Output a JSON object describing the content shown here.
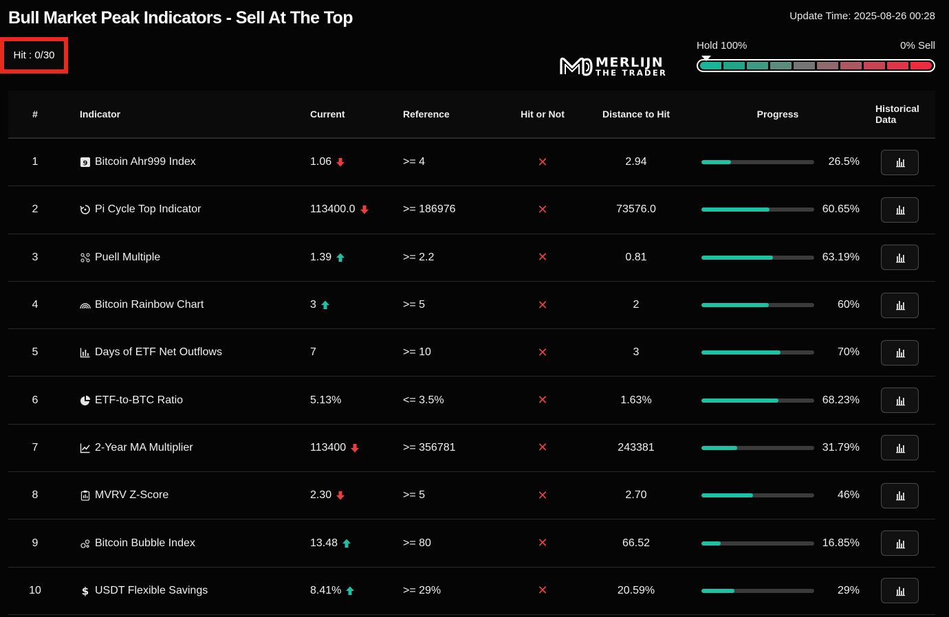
{
  "page_title": "Bull Market Peak Indicators - Sell At The Top",
  "update_time": "Update Time: 2025-08-26 00:28",
  "hit_badge": "Hit : 0/30",
  "logo": {
    "line1": "MERLIJN",
    "line2": "THE TRADER"
  },
  "meter": {
    "left_label": "Hold 100%",
    "right_label": "0% Sell",
    "pointer_value": 0,
    "segments": [
      "#1ab598",
      "#21a588",
      "#3e9a82",
      "#5c8c7d",
      "#757575",
      "#8e6a6e",
      "#ad5860",
      "#c74453",
      "#de3648",
      "#ef2b40"
    ]
  },
  "colors": {
    "accent": "#1fc1a4",
    "down": "#ee3b3b",
    "up": "#1fc1a4",
    "cross": "#e5453c",
    "highlight": "#ea2a1e"
  },
  "headers": {
    "num": "#",
    "indicator": "Indicator",
    "current": "Current",
    "reference": "Reference",
    "hit": "Hit or Not",
    "distance": "Distance to Hit",
    "progress": "Progress",
    "history": "Historical Data"
  },
  "rows": [
    {
      "num": "1",
      "icon": "ahr999-badge-icon",
      "name": "Bitcoin Ahr999 Index",
      "current": "1.06",
      "trend": "down",
      "reference": ">= 4",
      "hit": "✕",
      "distance": "2.94",
      "progress": 26.5,
      "progress_label": "26.5%"
    },
    {
      "num": "2",
      "icon": "pi-cycle-icon",
      "name": "Pi Cycle Top Indicator",
      "current": "113400.0",
      "trend": "down",
      "reference": ">= 186976",
      "hit": "✕",
      "distance": "73576.0",
      "progress": 60.65,
      "progress_label": "60.65%"
    },
    {
      "num": "3",
      "icon": "puell-icon",
      "name": "Puell Multiple",
      "current": "1.39",
      "trend": "up",
      "reference": ">= 2.2",
      "hit": "✕",
      "distance": "0.81",
      "progress": 63.19,
      "progress_label": "63.19%"
    },
    {
      "num": "4",
      "icon": "rainbow-icon",
      "name": "Bitcoin Rainbow Chart",
      "current": "3",
      "trend": "up",
      "reference": ">= 5",
      "hit": "✕",
      "distance": "2",
      "progress": 60,
      "progress_label": "60%"
    },
    {
      "num": "5",
      "icon": "bar-chart-icon",
      "name": "Days of ETF Net Outflows",
      "current": "7",
      "trend": "none",
      "reference": ">= 10",
      "hit": "✕",
      "distance": "3",
      "progress": 70,
      "progress_label": "70%"
    },
    {
      "num": "6",
      "icon": "pie-chart-icon",
      "name": "ETF-to-BTC Ratio",
      "current": "5.13%",
      "trend": "none",
      "reference": "<= 3.5%",
      "hit": "✕",
      "distance": "1.63%",
      "progress": 68.23,
      "progress_label": "68.23%"
    },
    {
      "num": "7",
      "icon": "line-chart-icon",
      "name": "2-Year MA Multiplier",
      "current": "113400",
      "trend": "down",
      "reference": ">= 356781",
      "hit": "✕",
      "distance": "243381",
      "progress": 31.79,
      "progress_label": "31.79%"
    },
    {
      "num": "8",
      "icon": "clipboard-icon",
      "name": "MVRV Z-Score",
      "current": "2.30",
      "trend": "down",
      "reference": ">= 5",
      "hit": "✕",
      "distance": "2.70",
      "progress": 46,
      "progress_label": "46%"
    },
    {
      "num": "9",
      "icon": "bubbles-icon",
      "name": "Bitcoin Bubble Index",
      "current": "13.48",
      "trend": "up",
      "reference": ">= 80",
      "hit": "✕",
      "distance": "66.52",
      "progress": 16.85,
      "progress_label": "16.85%"
    },
    {
      "num": "10",
      "icon": "dollar-icon",
      "name": "USDT Flexible Savings",
      "current": "8.41%",
      "trend": "up",
      "reference": ">= 29%",
      "hit": "✕",
      "distance": "20.59%",
      "progress": 29,
      "progress_label": "29%"
    }
  ]
}
